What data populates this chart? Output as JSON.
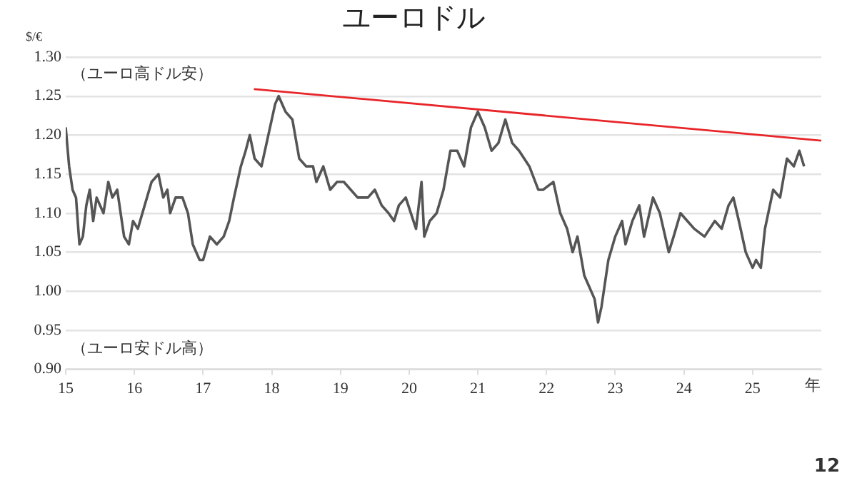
{
  "chart_data": {
    "type": "line",
    "title": "ユーロドル",
    "ylabel": "$/€",
    "xlabel": "年",
    "annotations": [
      "（ユーロ高ドル安）",
      "（ユーロ安ドル高）",
      "12"
    ],
    "xlim": [
      2015,
      2026
    ],
    "xticks": [
      {
        "value": 2015,
        "label": "15"
      },
      {
        "value": 2016,
        "label": "16"
      },
      {
        "value": 2017,
        "label": "17"
      },
      {
        "value": 2018,
        "label": "18"
      },
      {
        "value": 2019,
        "label": "19"
      },
      {
        "value": 2020,
        "label": "20"
      },
      {
        "value": 2021,
        "label": "21"
      },
      {
        "value": 2022,
        "label": "22"
      },
      {
        "value": 2023,
        "label": "23"
      },
      {
        "value": 2024,
        "label": "24"
      },
      {
        "value": 2025,
        "label": "25"
      }
    ],
    "ylim": [
      0.9,
      1.3
    ],
    "yticks": [
      {
        "value": 0.9,
        "label": "0.90"
      },
      {
        "value": 0.95,
        "label": "0.95"
      },
      {
        "value": 1.0,
        "label": "1.00"
      },
      {
        "value": 1.05,
        "label": "1.05"
      },
      {
        "value": 1.1,
        "label": "1.10"
      },
      {
        "value": 1.15,
        "label": "1.15"
      },
      {
        "value": 1.2,
        "label": "1.20"
      },
      {
        "value": 1.25,
        "label": "1.25"
      },
      {
        "value": 1.3,
        "label": "1.30"
      }
    ],
    "grid": "y",
    "legend": false,
    "marker": "none",
    "line_style": "solid",
    "series": [
      {
        "color": "#555555",
        "x": [
          2015.0,
          2015.05,
          2015.1,
          2015.15,
          2015.2,
          2015.25,
          2015.3,
          2015.35,
          2015.4,
          2015.45,
          2015.55,
          2015.62,
          2015.68,
          2015.75,
          2015.85,
          2015.92,
          2015.98,
          2016.05,
          2016.15,
          2016.25,
          2016.35,
          2016.42,
          2016.48,
          2016.52,
          2016.6,
          2016.7,
          2016.78,
          2016.85,
          2016.95,
          2017.0,
          2017.1,
          2017.2,
          2017.3,
          2017.38,
          2017.45,
          2017.55,
          2017.62,
          2017.68,
          2017.75,
          2017.85,
          2017.95,
          2018.05,
          2018.1,
          2018.2,
          2018.3,
          2018.4,
          2018.5,
          2018.6,
          2018.65,
          2018.75,
          2018.85,
          2018.95,
          2019.05,
          2019.15,
          2019.25,
          2019.4,
          2019.5,
          2019.6,
          2019.7,
          2019.78,
          2019.85,
          2019.95,
          2020.1,
          2020.18,
          2020.22,
          2020.3,
          2020.4,
          2020.5,
          2020.6,
          2020.7,
          2020.8,
          2020.9,
          2021.0,
          2021.1,
          2021.2,
          2021.3,
          2021.4,
          2021.5,
          2021.6,
          2021.75,
          2021.88,
          2021.95,
          2022.1,
          2022.2,
          2022.3,
          2022.38,
          2022.45,
          2022.55,
          2022.6,
          2022.7,
          2022.75,
          2022.8,
          2022.9,
          2023.0,
          2023.1,
          2023.15,
          2023.25,
          2023.35,
          2023.42,
          2023.55,
          2023.65,
          2023.78,
          2023.85,
          2023.95,
          2024.05,
          2024.15,
          2024.3,
          2024.45,
          2024.55,
          2024.65,
          2024.72,
          2024.8,
          2024.9,
          2025.0,
          2025.05,
          2025.12,
          2025.18,
          2025.3,
          2025.4,
          2025.5,
          2025.6,
          2025.68,
          2025.75
        ],
        "values": [
          1.21,
          1.16,
          1.13,
          1.12,
          1.06,
          1.07,
          1.11,
          1.13,
          1.09,
          1.12,
          1.1,
          1.14,
          1.12,
          1.13,
          1.07,
          1.06,
          1.09,
          1.08,
          1.11,
          1.14,
          1.15,
          1.12,
          1.13,
          1.1,
          1.12,
          1.12,
          1.1,
          1.06,
          1.04,
          1.04,
          1.07,
          1.06,
          1.07,
          1.09,
          1.12,
          1.16,
          1.18,
          1.2,
          1.17,
          1.16,
          1.2,
          1.24,
          1.25,
          1.23,
          1.22,
          1.17,
          1.16,
          1.16,
          1.14,
          1.16,
          1.13,
          1.14,
          1.14,
          1.13,
          1.12,
          1.12,
          1.13,
          1.11,
          1.1,
          1.09,
          1.11,
          1.12,
          1.08,
          1.14,
          1.07,
          1.09,
          1.1,
          1.13,
          1.18,
          1.18,
          1.16,
          1.21,
          1.23,
          1.21,
          1.18,
          1.19,
          1.22,
          1.19,
          1.18,
          1.16,
          1.13,
          1.13,
          1.14,
          1.1,
          1.08,
          1.05,
          1.07,
          1.02,
          1.01,
          0.99,
          0.96,
          0.98,
          1.04,
          1.07,
          1.09,
          1.06,
          1.09,
          1.11,
          1.07,
          1.12,
          1.1,
          1.05,
          1.07,
          1.1,
          1.09,
          1.08,
          1.07,
          1.09,
          1.08,
          1.11,
          1.12,
          1.09,
          1.05,
          1.03,
          1.04,
          1.03,
          1.08,
          1.13,
          1.12,
          1.17,
          1.16,
          1.18,
          1.16
        ]
      },
      {
        "color": "#e8262a",
        "x": [
          2017.74,
          2026
        ],
        "values": [
          1.259,
          1.193
        ]
      }
    ]
  }
}
